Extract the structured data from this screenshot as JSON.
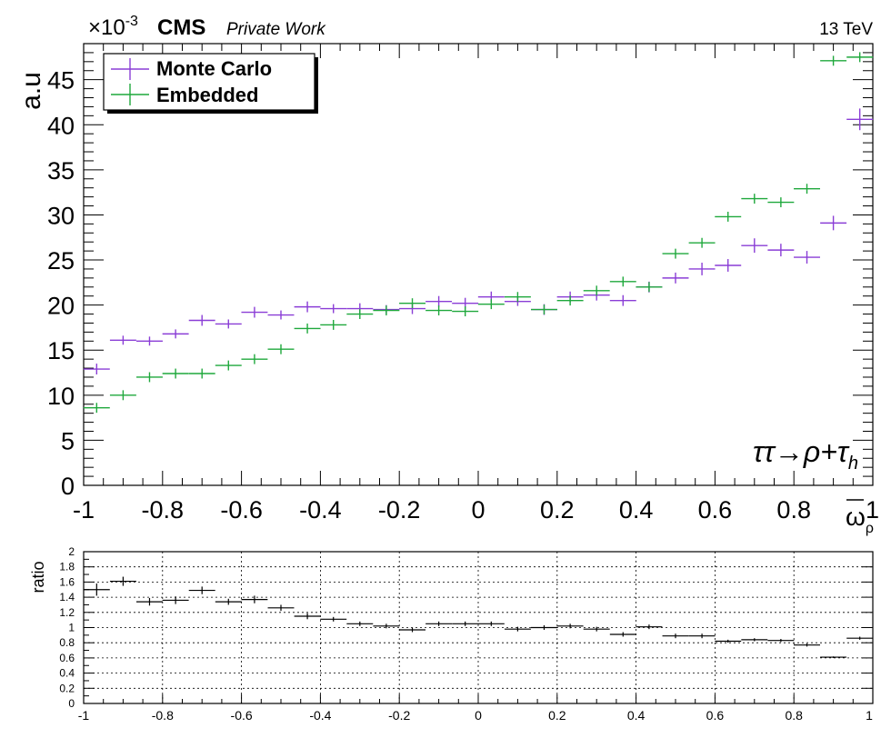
{
  "header": {
    "multiplier_base": "×10",
    "multiplier_exp": "-3",
    "experiment": "CMS",
    "label": "Private Work",
    "energy": "13 TeV"
  },
  "colors": {
    "monte_carlo": "#8a3dd6",
    "embedded": "#1fa83c",
    "ratio": "#000000"
  },
  "chart_data": [
    {
      "type": "scatter",
      "ylabel": "a.u",
      "xlabel_main": "ω",
      "xlabel_sub": "ρ",
      "channel_label": "ττ→ρ+τ_h",
      "xlim": [
        -1,
        1
      ],
      "ylim": [
        0,
        49
      ],
      "y_ticks": [
        0,
        5,
        10,
        15,
        20,
        25,
        30,
        35,
        40,
        45
      ],
      "y_tick_labels": [
        "0",
        "5",
        "10",
        "15",
        "20",
        "25",
        "30",
        "35",
        "40",
        "45"
      ],
      "x_ticks": [
        -1,
        -0.8,
        -0.6,
        -0.4,
        -0.2,
        0,
        0.2,
        0.4,
        0.6,
        0.8,
        1
      ],
      "x_tick_labels": [
        "-1",
        "-0.8",
        "-0.6",
        "-0.4",
        "-0.2",
        "0",
        "0.2",
        "0.4",
        "0.6",
        "0.8",
        "1"
      ],
      "legend_placement": "top-left",
      "bin_width": 0.0667,
      "x": [
        -0.967,
        -0.9,
        -0.833,
        -0.767,
        -0.7,
        -0.633,
        -0.567,
        -0.5,
        -0.433,
        -0.367,
        -0.3,
        -0.233,
        -0.167,
        -0.1,
        -0.033,
        0.033,
        0.1,
        0.167,
        0.233,
        0.3,
        0.367,
        0.433,
        0.5,
        0.567,
        0.633,
        0.7,
        0.767,
        0.833,
        0.9,
        0.967
      ],
      "series": [
        {
          "name": "Monte Carlo",
          "values": [
            12.9,
            16.1,
            16.0,
            16.8,
            18.3,
            17.9,
            19.2,
            18.9,
            19.8,
            19.6,
            19.6,
            19.5,
            19.6,
            20.4,
            20.2,
            20.9,
            20.4,
            19.5,
            20.9,
            21.1,
            20.5,
            22.0,
            23.0,
            24.0,
            24.4,
            26.6,
            26.1,
            25.3,
            29.1,
            40.6
          ],
          "errors": [
            0.6,
            0.5,
            0.5,
            0.5,
            0.6,
            0.5,
            0.6,
            0.5,
            0.6,
            0.5,
            0.6,
            0.5,
            0.6,
            0.6,
            0.6,
            0.6,
            0.5,
            0.6,
            0.6,
            0.6,
            0.6,
            0.6,
            0.6,
            0.7,
            0.7,
            0.8,
            0.7,
            0.7,
            0.8,
            1.2
          ]
        },
        {
          "name": "Embedded",
          "values": [
            8.6,
            10.0,
            12.0,
            12.4,
            12.4,
            13.3,
            14.0,
            15.1,
            17.4,
            17.8,
            19.0,
            19.4,
            20.2,
            19.4,
            19.3,
            20.1,
            20.9,
            19.5,
            20.5,
            21.6,
            22.6,
            22.0,
            25.7,
            26.9,
            29.8,
            31.8,
            31.4,
            32.9,
            47.1,
            47.5
          ]
        }
      ]
    },
    {
      "type": "scatter",
      "ylabel": "ratio",
      "xlim": [
        -1,
        1
      ],
      "ylim": [
        0,
        2
      ],
      "y_ticks": [
        0,
        0.2,
        0.4,
        0.6,
        0.8,
        1,
        1.2,
        1.4,
        1.6,
        1.8,
        2
      ],
      "y_tick_labels": [
        "0",
        "0.2",
        "0.4",
        "0.6",
        "0.8",
        "1",
        "1.2",
        "1.4",
        "1.6",
        "1.8",
        "2"
      ],
      "x_ticks": [
        -1,
        -0.8,
        -0.6,
        -0.4,
        -0.2,
        0,
        0.2,
        0.4,
        0.6,
        0.8,
        1
      ],
      "x_tick_labels": [
        "-1",
        "-0.8",
        "-0.6",
        "-0.4",
        "-0.2",
        "0",
        "0.2",
        "0.4",
        "0.6",
        "0.8",
        "1"
      ],
      "grid": true,
      "x": [
        -0.967,
        -0.9,
        -0.833,
        -0.767,
        -0.7,
        -0.633,
        -0.567,
        -0.5,
        -0.433,
        -0.367,
        -0.3,
        -0.233,
        -0.167,
        -0.1,
        -0.033,
        0.033,
        0.1,
        0.167,
        0.233,
        0.3,
        0.367,
        0.433,
        0.5,
        0.567,
        0.633,
        0.7,
        0.767,
        0.833,
        0.9,
        0.967
      ],
      "values": [
        1.5,
        1.61,
        1.34,
        1.36,
        1.49,
        1.34,
        1.37,
        1.26,
        1.15,
        1.11,
        1.05,
        1.02,
        0.97,
        1.05,
        1.05,
        1.05,
        0.98,
        1.0,
        1.02,
        0.98,
        0.91,
        1.01,
        0.89,
        0.89,
        0.82,
        0.84,
        0.83,
        0.77,
        0.61,
        0.86
      ],
      "errors": [
        0.08,
        0.06,
        0.05,
        0.05,
        0.05,
        0.04,
        0.05,
        0.04,
        0.04,
        0.03,
        0.03,
        0.03,
        0.03,
        0.03,
        0.03,
        0.03,
        0.03,
        0.03,
        0.03,
        0.03,
        0.03,
        0.03,
        0.03,
        0.03,
        0.02,
        0.02,
        0.02,
        0.02,
        0.01,
        0.02
      ]
    }
  ]
}
